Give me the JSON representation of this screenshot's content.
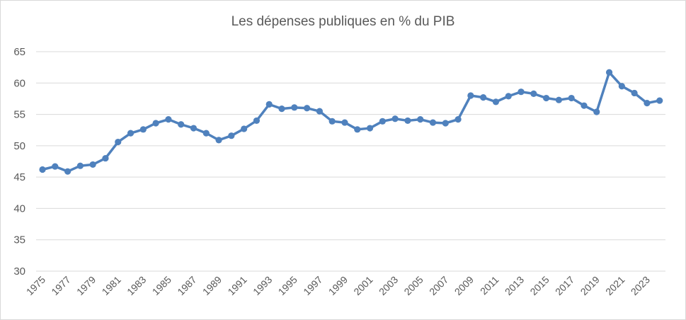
{
  "chart_data": {
    "type": "line",
    "title": "Les dépenses publiques  en % du PIB",
    "xlabel": "",
    "ylabel": "",
    "ylim": [
      30,
      65
    ],
    "yticks": [
      30,
      35,
      40,
      45,
      50,
      55,
      60,
      65
    ],
    "grid": true,
    "legend": "none",
    "x": [
      1975,
      1976,
      1977,
      1978,
      1979,
      1980,
      1981,
      1982,
      1983,
      1984,
      1985,
      1986,
      1987,
      1988,
      1989,
      1990,
      1991,
      1992,
      1993,
      1994,
      1995,
      1996,
      1997,
      1998,
      1999,
      2000,
      2001,
      2002,
      2003,
      2004,
      2005,
      2006,
      2007,
      2008,
      2009,
      2010,
      2011,
      2012,
      2013,
      2014,
      2015,
      2016,
      2017,
      2018,
      2019,
      2020,
      2021,
      2022,
      2023,
      2024
    ],
    "xtick_labels": [
      "1975",
      "1977",
      "1979",
      "1981",
      "1983",
      "1985",
      "1987",
      "1989",
      "1991",
      "1993",
      "1995",
      "1997",
      "1999",
      "2001",
      "2003",
      "2005",
      "2007",
      "2009",
      "2011",
      "2013",
      "2015",
      "2017",
      "2019",
      "2021",
      "2023"
    ],
    "series": [
      {
        "color": "#4f81bd",
        "values": [
          46.2,
          46.7,
          45.9,
          46.8,
          47.0,
          48.0,
          50.6,
          52.0,
          52.6,
          53.6,
          54.2,
          53.4,
          52.8,
          52.0,
          50.9,
          51.6,
          52.7,
          54.0,
          56.6,
          55.9,
          56.1,
          56.0,
          55.5,
          53.9,
          53.7,
          52.6,
          52.8,
          53.9,
          54.3,
          54.0,
          54.2,
          53.7,
          53.6,
          54.2,
          58.0,
          57.7,
          57.0,
          57.9,
          58.6,
          58.3,
          57.6,
          57.3,
          57.6,
          56.4,
          55.4,
          61.7,
          59.5,
          58.4,
          56.8,
          57.2
        ]
      }
    ]
  }
}
